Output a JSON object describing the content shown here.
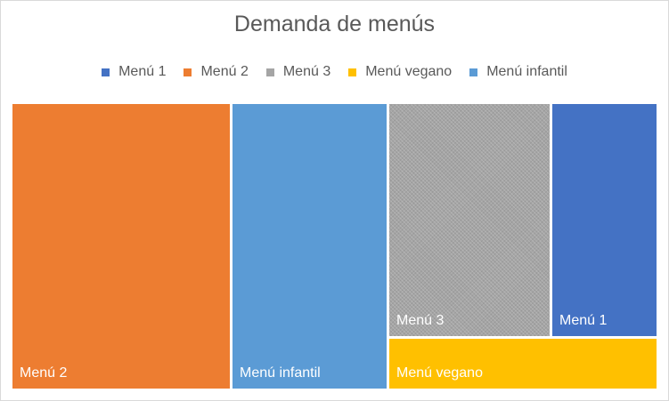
{
  "chart_data": {
    "type": "treemap",
    "title": "Demanda de menús",
    "legend_position": "top",
    "series": [
      {
        "name": "Menú 1",
        "color": "#4472c4"
      },
      {
        "name": "Menú 2",
        "color": "#ed7d31"
      },
      {
        "name": "Menú 3",
        "color": "#a5a5a5"
      },
      {
        "name": "Menú vegano",
        "color": "#ffc000"
      },
      {
        "name": "Menú infantil",
        "color": "#5b9bd5"
      }
    ],
    "tiles": [
      {
        "label": "Menú 2",
        "color": "#ed7d31"
      },
      {
        "label": "Menú infantil",
        "color": "#5b9bd5"
      },
      {
        "label": "Menú 3",
        "color": "#a5a5a5"
      },
      {
        "label": "Menú 1",
        "color": "#4472c4"
      },
      {
        "label": "Menú vegano",
        "color": "#ffc000"
      }
    ]
  }
}
